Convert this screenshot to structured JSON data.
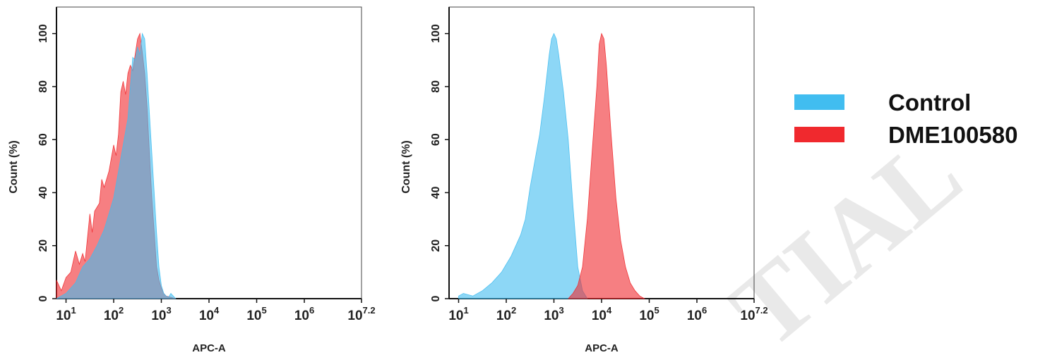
{
  "legend": {
    "items": [
      {
        "label": "Control",
        "color": "#41bdf0"
      },
      {
        "label": "DME100580",
        "color": "#f0292e"
      }
    ]
  },
  "watermark": {
    "text": "TIAL"
  },
  "chart_data": [
    {
      "type": "area",
      "xlabel": "APC-A",
      "ylabel": "Count (%)",
      "xscale": "log",
      "xlim_log10": [
        0.8,
        7.2
      ],
      "ylim": [
        0,
        110
      ],
      "x_ticks": [
        {
          "base": "10",
          "exp": "1",
          "log": 1
        },
        {
          "base": "10",
          "exp": "2",
          "log": 2
        },
        {
          "base": "10",
          "exp": "3",
          "log": 3
        },
        {
          "base": "10",
          "exp": "4",
          "log": 4
        },
        {
          "base": "10",
          "exp": "5",
          "log": 5
        },
        {
          "base": "10",
          "exp": "6",
          "log": 6
        },
        {
          "base": "10",
          "exp": "7.2",
          "log": 7.2
        }
      ],
      "y_ticks": [
        {
          "label": "0",
          "value": 0
        },
        {
          "label": "20",
          "value": 20
        },
        {
          "label": "40",
          "value": 40
        },
        {
          "label": "60",
          "value": 60
        },
        {
          "label": "80",
          "value": 80
        },
        {
          "label": "100",
          "value": 100
        }
      ],
      "series": [
        {
          "name": "DME100580",
          "color": "#f0292e",
          "log10_x": [
            0.8,
            0.9,
            1.0,
            1.1,
            1.2,
            1.28,
            1.35,
            1.4,
            1.5,
            1.55,
            1.6,
            1.7,
            1.75,
            1.8,
            1.9,
            2.0,
            2.05,
            2.1,
            2.15,
            2.2,
            2.25,
            2.3,
            2.35,
            2.4,
            2.45,
            2.5,
            2.55,
            2.6,
            2.65,
            2.7,
            2.75,
            2.8,
            2.85,
            2.9,
            2.95,
            3.0,
            3.05,
            3.1,
            3.2,
            3.3
          ],
          "values": [
            7,
            3,
            8,
            10,
            18,
            13,
            17,
            14,
            32,
            25,
            33,
            36,
            45,
            42,
            48,
            58,
            54,
            62,
            78,
            82,
            77,
            85,
            88,
            86,
            92,
            98,
            100,
            93,
            85,
            72,
            55,
            38,
            25,
            12,
            7,
            4,
            2,
            1,
            0.5,
            0
          ]
        },
        {
          "name": "Control",
          "color": "#41bdf0",
          "log10_x": [
            0.8,
            1.0,
            1.2,
            1.35,
            1.5,
            1.65,
            1.8,
            1.9,
            2.0,
            2.1,
            2.2,
            2.3,
            2.35,
            2.4,
            2.45,
            2.5,
            2.55,
            2.6,
            2.65,
            2.7,
            2.75,
            2.8,
            2.85,
            2.9,
            2.95,
            3.0,
            3.05,
            3.1,
            3.15,
            3.2,
            3.3
          ],
          "values": [
            0,
            2,
            6,
            12,
            15,
            20,
            26,
            32,
            38,
            48,
            58,
            68,
            80,
            91,
            90,
            95,
            92,
            100,
            98,
            85,
            70,
            55,
            40,
            25,
            12,
            5,
            2,
            1,
            0.5,
            2,
            0
          ]
        }
      ]
    },
    {
      "type": "area",
      "xlabel": "APC-A",
      "ylabel": "Count (%)",
      "xscale": "log",
      "xlim_log10": [
        0.8,
        7.2
      ],
      "ylim": [
        0,
        110
      ],
      "x_ticks": [
        {
          "base": "10",
          "exp": "1",
          "log": 1
        },
        {
          "base": "10",
          "exp": "2",
          "log": 2
        },
        {
          "base": "10",
          "exp": "3",
          "log": 3
        },
        {
          "base": "10",
          "exp": "4",
          "log": 4
        },
        {
          "base": "10",
          "exp": "5",
          "log": 5
        },
        {
          "base": "10",
          "exp": "6",
          "log": 6
        },
        {
          "base": "10",
          "exp": "7.2",
          "log": 7.2
        }
      ],
      "y_ticks": [
        {
          "label": "0",
          "value": 0
        },
        {
          "label": "20",
          "value": 20
        },
        {
          "label": "40",
          "value": 40
        },
        {
          "label": "60",
          "value": 60
        },
        {
          "label": "80",
          "value": 80
        },
        {
          "label": "100",
          "value": 100
        }
      ],
      "series": [
        {
          "name": "Control",
          "color": "#41bdf0",
          "log10_x": [
            1.0,
            1.1,
            1.3,
            1.5,
            1.7,
            1.9,
            2.1,
            2.3,
            2.4,
            2.5,
            2.6,
            2.7,
            2.8,
            2.9,
            2.95,
            3.0,
            3.05,
            3.1,
            3.2,
            3.3,
            3.4,
            3.5,
            3.6,
            3.7
          ],
          "values": [
            1,
            2,
            1,
            3,
            6,
            10,
            16,
            24,
            30,
            42,
            52,
            62,
            76,
            92,
            98,
            100,
            98,
            92,
            78,
            60,
            35,
            12,
            3,
            0
          ]
        },
        {
          "name": "DME100580",
          "color": "#f0292e",
          "log10_x": [
            3.3,
            3.4,
            3.5,
            3.6,
            3.7,
            3.8,
            3.9,
            3.95,
            4.0,
            4.05,
            4.1,
            4.2,
            4.3,
            4.4,
            4.5,
            4.6,
            4.7,
            4.8,
            4.9
          ],
          "values": [
            0,
            2,
            5,
            12,
            30,
            55,
            80,
            96,
            100,
            98,
            88,
            62,
            38,
            22,
            12,
            6,
            3,
            1,
            0
          ]
        }
      ]
    }
  ]
}
